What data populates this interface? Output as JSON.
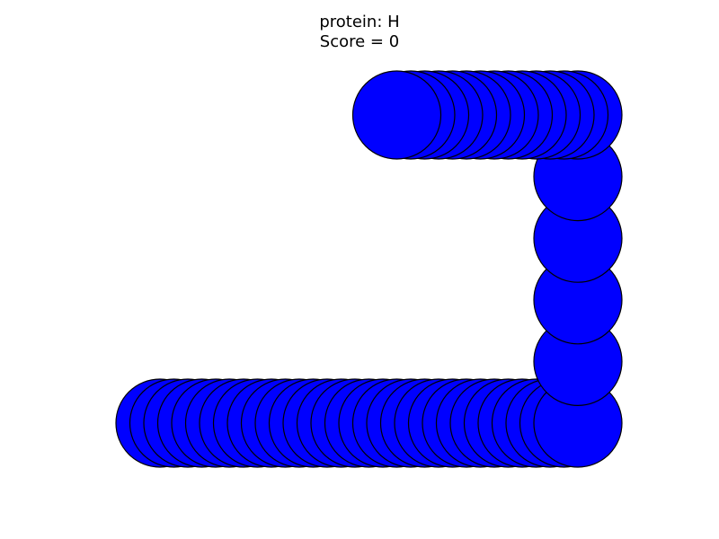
{
  "title_line1": "protein: H",
  "title_line2": "Score = 0",
  "chart_data": {
    "type": "scatter",
    "title": "protein: H\nScore = 0",
    "xlabel": "",
    "ylabel": "",
    "grid": false,
    "axes_visible": false,
    "marker": "circle",
    "marker_face_color": "#0000ff",
    "marker_edge_color": "#000000",
    "series": [
      {
        "x": [
          0.0,
          0.1,
          0.2,
          0.3,
          0.4,
          0.5,
          0.6,
          0.7,
          0.8,
          0.9,
          1.0,
          1.1,
          1.2,
          1.3,
          1.4,
          1.5,
          1.6,
          1.7,
          1.8,
          1.9,
          2.0,
          2.1,
          2.2,
          2.3,
          2.4,
          2.5,
          2.6,
          2.7,
          2.8,
          2.9,
          3.0,
          3.0,
          3.0,
          3.0,
          3.0,
          3.0,
          2.9,
          2.8,
          2.7,
          2.6,
          2.5,
          2.4,
          2.3,
          2.2,
          2.1,
          2.0,
          1.9,
          1.8,
          1.7
        ],
        "y": [
          0,
          0,
          0,
          0,
          0,
          0,
          0,
          0,
          0,
          0,
          0,
          0,
          0,
          0,
          0,
          0,
          0,
          0,
          0,
          0,
          0,
          0,
          0,
          0,
          0,
          0,
          0,
          0,
          0,
          0,
          0,
          1,
          2,
          3,
          4,
          5,
          5,
          5,
          5,
          5,
          5,
          5,
          5,
          5,
          5,
          5,
          5,
          5,
          5
        ]
      }
    ]
  }
}
